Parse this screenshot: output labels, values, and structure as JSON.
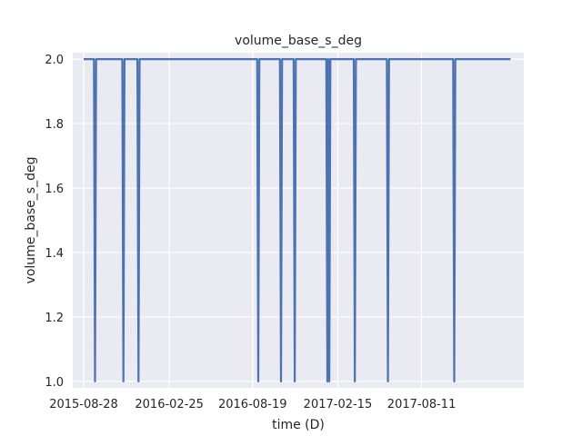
{
  "chart_data": {
    "type": "line",
    "title": "volume_base_s_deg",
    "xlabel": "time (D)",
    "ylabel": "volume_base_s_deg",
    "x_type": "date",
    "xlim": [
      "2015-08-05",
      "2018-03-15"
    ],
    "ylim": [
      0.98,
      2.02
    ],
    "x_ticks": [
      "2015-08-28",
      "2016-02-25",
      "2016-08-19",
      "2017-02-15",
      "2017-08-11"
    ],
    "y_ticks": [
      1.0,
      1.2,
      1.4,
      1.6,
      1.8,
      2.0
    ],
    "y_tick_labels": [
      "1.0",
      "1.2",
      "1.4",
      "1.6",
      "1.8",
      "2.0"
    ],
    "grid": true,
    "background": "#eaeaf2",
    "series": [
      {
        "color": "#4c72b0",
        "start": "2015-08-28",
        "end": "2018-02-15",
        "baseline": 2.0,
        "dips": [
          {
            "date": "2015-09-21",
            "value": 1.0
          },
          {
            "date": "2015-11-20",
            "value": 1.0
          },
          {
            "date": "2015-12-22",
            "value": 1.0
          },
          {
            "date": "2016-08-31",
            "value": 1.0
          },
          {
            "date": "2016-10-18",
            "value": 1.0
          },
          {
            "date": "2016-11-16",
            "value": 1.0
          },
          {
            "date": "2017-01-24",
            "value": 1.0
          },
          {
            "date": "2017-01-28",
            "value": 1.0
          },
          {
            "date": "2017-03-23",
            "value": 1.0
          },
          {
            "date": "2017-06-01",
            "value": 1.0
          },
          {
            "date": "2017-10-19",
            "value": 1.0
          }
        ]
      }
    ]
  }
}
